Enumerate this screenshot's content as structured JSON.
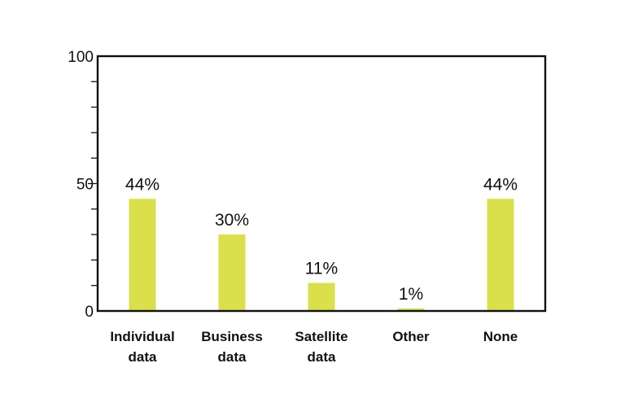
{
  "chart_data": {
    "type": "bar",
    "categories": [
      [
        "Individual",
        "data"
      ],
      [
        "Business",
        "data"
      ],
      [
        "Satellite",
        "data"
      ],
      [
        "Other"
      ],
      [
        "None"
      ]
    ],
    "values": [
      44,
      30,
      11,
      1,
      44
    ],
    "data_labels": [
      "44%",
      "30%",
      "11%",
      "1%",
      "44%"
    ],
    "ylim": [
      0,
      100
    ],
    "y_ticks": [
      0,
      50,
      100
    ],
    "y_minor_step": 10,
    "grid": false,
    "bar_color": "#d9e04a",
    "axis_color": "#111111"
  }
}
